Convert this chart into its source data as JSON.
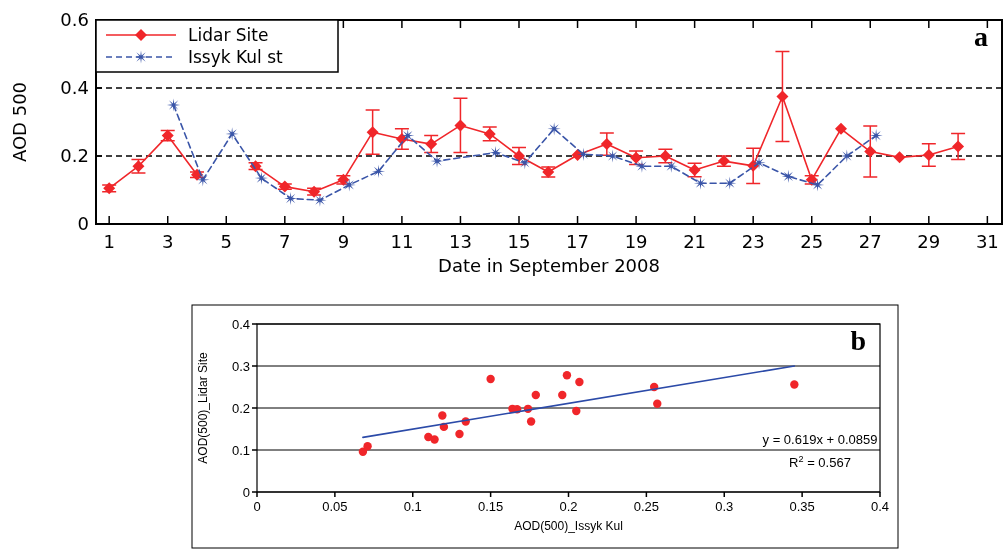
{
  "chart_data": [
    {
      "type": "line",
      "xlabel": "Date in September 2008",
      "ylabel": "AOD 500",
      "xlim": [
        0.55,
        31.5
      ],
      "ylim": [
        0,
        0.6
      ],
      "xticks": [
        1,
        3,
        5,
        7,
        9,
        11,
        13,
        15,
        17,
        19,
        21,
        23,
        25,
        27,
        29,
        31
      ],
      "yticks": [
        0,
        0.2,
        0.4,
        0.6
      ],
      "legend": "top left",
      "annotations": [
        "a"
      ],
      "ref_lines": [
        {
          "axis": "y",
          "value": 0.2,
          "color": "#000000",
          "line_style": "dashed"
        },
        {
          "axis": "y",
          "value": 0.4,
          "color": "#000000",
          "line_style": "dashed"
        }
      ],
      "series": [
        {
          "name": "Lidar Site",
          "color": "#f0262a",
          "marker": "diamond",
          "line_style": "solid",
          "x": [
            1,
            2,
            3,
            4,
            5,
            6,
            7,
            8,
            9,
            10,
            11,
            12,
            13,
            14,
            15,
            16,
            17,
            18,
            19,
            20,
            21,
            22,
            23,
            24,
            25,
            26,
            27,
            28,
            29,
            30
          ],
          "values": [
            0.105,
            0.17,
            0.26,
            0.145,
            null,
            0.17,
            0.11,
            0.095,
            0.13,
            0.27,
            0.25,
            0.235,
            0.29,
            0.265,
            0.2,
            0.153,
            0.203,
            0.235,
            0.195,
            0.2,
            0.159,
            0.185,
            0.171,
            0.375,
            0.13,
            0.28,
            0.213,
            0.196,
            0.203,
            0.228
          ],
          "errors": [
            0.01,
            0.02,
            0.015,
            0.008,
            null,
            0.01,
            0.008,
            0.01,
            0.012,
            0.065,
            0.03,
            0.025,
            0.08,
            0.02,
            0.025,
            0.015,
            null,
            0.033,
            0.02,
            0.02,
            0.02,
            0.015,
            0.052,
            0.132,
            0.012,
            null,
            0.075,
            null,
            0.033,
            0.038
          ]
        },
        {
          "name": "Issyk Kul st",
          "color": "#3a55a8",
          "marker": "star",
          "line_style": "dashed",
          "x": [
            3.2,
            4.2,
            5.2,
            6.2,
            7.2,
            8.2,
            9.2,
            10.2,
            11.2,
            12.2,
            14.2,
            15.2,
            16.2,
            17.2,
            18.2,
            19.2,
            20.2,
            21.2,
            22.2,
            23.2,
            24.2,
            25.2,
            26.2,
            27.2
          ],
          "values": [
            0.35,
            0.13,
            0.265,
            0.135,
            0.075,
            0.07,
            0.115,
            0.155,
            0.26,
            0.185,
            0.21,
            0.18,
            0.28,
            0.205,
            0.2,
            0.17,
            0.17,
            0.12,
            0.12,
            0.18,
            0.14,
            0.115,
            0.2,
            0.26
          ]
        }
      ]
    },
    {
      "type": "scatter",
      "xlabel": "AOD(500)_Issyk Kul",
      "ylabel": "AOD(500)_Lidar Site",
      "xlim": [
        0,
        0.4
      ],
      "ylim": [
        0,
        0.4
      ],
      "xticks": [
        0,
        0.05,
        0.1,
        0.15,
        0.2,
        0.25,
        0.3,
        0.35,
        0.4
      ],
      "yticks": [
        0,
        0.1,
        0.2,
        0.3,
        0.4
      ],
      "grid": "y",
      "legend": false,
      "annotations": [
        "b",
        "y = 0.619x + 0.0859",
        "R$^{2}$ = 0.567"
      ],
      "series": [
        {
          "color": "#f0262a",
          "marker": "circle",
          "x": [
            0.068,
            0.071,
            0.11,
            0.114,
            0.119,
            0.12,
            0.13,
            0.134,
            0.15,
            0.164,
            0.167,
            0.174,
            0.176,
            0.179,
            0.196,
            0.199,
            0.205,
            0.207,
            0.255,
            0.257,
            0.345
          ],
          "values": [
            0.096,
            0.109,
            0.131,
            0.125,
            0.182,
            0.155,
            0.138,
            0.168,
            0.269,
            0.198,
            0.197,
            0.198,
            0.168,
            0.231,
            0.231,
            0.278,
            0.193,
            0.262,
            0.25,
            0.21,
            0.256
          ]
        },
        {
          "type": "line",
          "color": "#2b4aa8",
          "marker": "none",
          "line_style": "solid",
          "x": [
            0.068,
            0.345
          ],
          "values": [
            0.13,
            0.3
          ]
        }
      ]
    }
  ]
}
